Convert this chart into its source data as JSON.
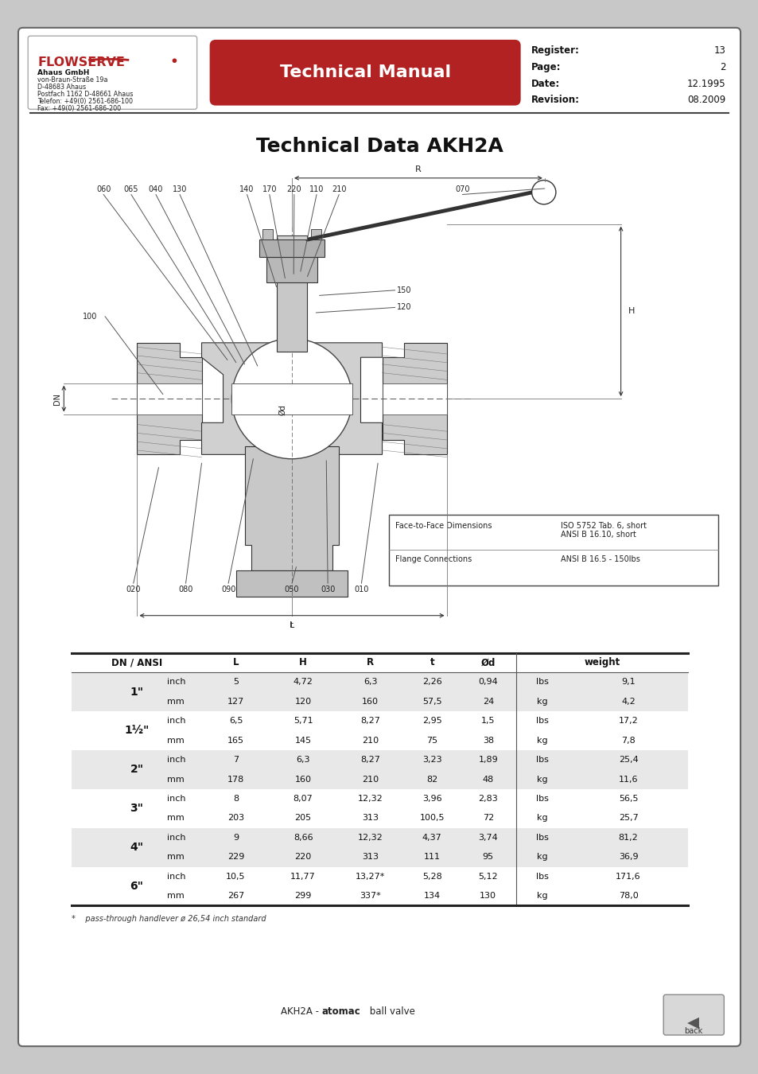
{
  "title": "Technical Data AKH2A",
  "header": {
    "company": "FLOWSERVE",
    "address_lines": [
      "Ahaus GmbH",
      "von-Braun-Straße 19a",
      "D-48683 Ahaus",
      "Postfach 1162 D-48661 Ahaus",
      "Telefon: +49(0) 2561-686-100",
      "Fax: +49(0) 2561-686-200"
    ],
    "manual_title": "Technical Manual",
    "register_label": "Register:",
    "register_value": "13",
    "page_label": "Page:",
    "page_value": "2",
    "date_label": "Date:",
    "date_value": "12.1995",
    "revision_label": "Revision:",
    "revision_value": "08.2009"
  },
  "face_to_face": {
    "label1": "Face-to-Face Dimensions",
    "value1_line1": "ISO 5752 Tab. 6, short",
    "value1_line2": "ANSI B 16.10, short",
    "label2": "Flange Connections",
    "value2": "ANSI B 16.5 - 150lbs"
  },
  "table_rows": [
    [
      "1\"",
      "inch",
      "5",
      "4,72",
      "6,3",
      "2,26",
      "0,94",
      "lbs",
      "9,1"
    ],
    [
      "",
      "mm",
      "127",
      "120",
      "160",
      "57,5",
      "24",
      "kg",
      "4,2"
    ],
    [
      "1½\"",
      "inch",
      "6,5",
      "5,71",
      "8,27",
      "2,95",
      "1,5",
      "lbs",
      "17,2"
    ],
    [
      "",
      "mm",
      "165",
      "145",
      "210",
      "75",
      "38",
      "kg",
      "7,8"
    ],
    [
      "2\"",
      "inch",
      "7",
      "6,3",
      "8,27",
      "3,23",
      "1,89",
      "lbs",
      "25,4"
    ],
    [
      "",
      "mm",
      "178",
      "160",
      "210",
      "82",
      "48",
      "kg",
      "11,6"
    ],
    [
      "3\"",
      "inch",
      "8",
      "8,07",
      "12,32",
      "3,96",
      "2,83",
      "lbs",
      "56,5"
    ],
    [
      "",
      "mm",
      "203",
      "205",
      "313",
      "100,5",
      "72",
      "kg",
      "25,7"
    ],
    [
      "4\"",
      "inch",
      "9",
      "8,66",
      "12,32",
      "4,37",
      "3,74",
      "lbs",
      "81,2"
    ],
    [
      "",
      "mm",
      "229",
      "220",
      "313",
      "111",
      "95",
      "kg",
      "36,9"
    ],
    [
      "6\"",
      "inch",
      "10,5",
      "11,77",
      "13,27*",
      "5,28",
      "5,12",
      "lbs",
      "171,6"
    ],
    [
      "",
      "mm",
      "267",
      "299",
      "337*",
      "134",
      "130",
      "kg",
      "78,0"
    ]
  ],
  "footnote": "*    pass-through handlever ø 26,54 inch standard",
  "header_red": "#b22222",
  "table_shade": "#e8e8e8",
  "outer_bg": "#c8c8c8"
}
